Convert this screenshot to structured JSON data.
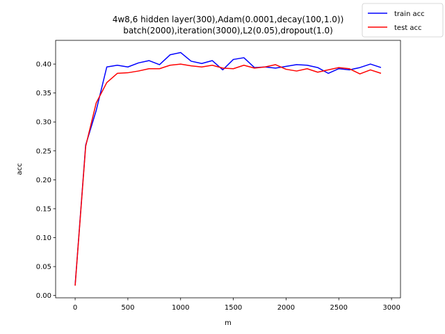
{
  "chart_data": {
    "type": "line",
    "title_lines": [
      "4w8,6 hidden layer(300),Adam(0.0001,decay(100,1.0))",
      "batch(2000),iteration(3000),L2(0.05),dropout(1.0)"
    ],
    "xlabel": "m",
    "ylabel": "acc",
    "xlim": [
      -185,
      3085
    ],
    "ylim": [
      -0.004,
      0.441
    ],
    "xticks": [
      0,
      500,
      1000,
      1500,
      2000,
      2500,
      3000
    ],
    "xtick_labels": [
      "0",
      "500",
      "1000",
      "1500",
      "2000",
      "2500",
      "3000"
    ],
    "yticks": [
      0.0,
      0.05,
      0.1,
      0.15,
      0.2,
      0.25,
      0.3,
      0.35,
      0.4
    ],
    "ytick_labels": [
      "0.00",
      "0.05",
      "0.10",
      "0.15",
      "0.20",
      "0.25",
      "0.30",
      "0.35",
      "0.40"
    ],
    "grid": false,
    "legend_position": "top-right",
    "x": [
      0,
      100,
      200,
      300,
      400,
      500,
      600,
      700,
      800,
      900,
      1000,
      1100,
      1200,
      1300,
      1400,
      1500,
      1600,
      1700,
      1800,
      1900,
      2000,
      2100,
      2200,
      2300,
      2400,
      2500,
      2600,
      2700,
      2800,
      2900
    ],
    "series": [
      {
        "name": "train acc",
        "color": "#0000ff",
        "values": [
          0.018,
          0.26,
          0.32,
          0.395,
          0.398,
          0.395,
          0.402,
          0.406,
          0.399,
          0.416,
          0.42,
          0.405,
          0.401,
          0.406,
          0.39,
          0.408,
          0.411,
          0.394,
          0.395,
          0.393,
          0.396,
          0.399,
          0.398,
          0.394,
          0.384,
          0.392,
          0.39,
          0.394,
          0.4,
          0.394
        ]
      },
      {
        "name": "test acc",
        "color": "#ff0000",
        "values": [
          0.017,
          0.258,
          0.333,
          0.368,
          0.384,
          0.385,
          0.388,
          0.392,
          0.392,
          0.398,
          0.4,
          0.397,
          0.395,
          0.398,
          0.393,
          0.392,
          0.398,
          0.393,
          0.395,
          0.399,
          0.391,
          0.388,
          0.392,
          0.386,
          0.39,
          0.394,
          0.392,
          0.383,
          0.39,
          0.384
        ]
      }
    ]
  }
}
